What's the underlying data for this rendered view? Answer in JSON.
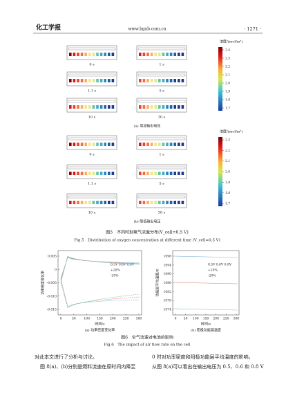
{
  "header": {
    "journal": "化工学报",
    "url": "www.hgxb.com.cn",
    "page": "· 1271 ·"
  },
  "figure5": {
    "panel_a": {
      "colorbar_title": "浓度/(mol/m³)",
      "colorbar_ticks": [
        "2.4",
        "2.3",
        "2.2",
        "2.1",
        "2.0",
        "1.9",
        "1.8",
        "1.7"
      ],
      "times": [
        "0 s",
        "1 s",
        "1.1 s",
        "5 s",
        "10 s",
        "30 s"
      ],
      "caption": "(a) 增加输出电压"
    },
    "panel_b": {
      "colorbar_title": "浓度/(mol/m³)",
      "colorbar_ticks": [
        "2.3",
        "2.2",
        "2.1",
        "2.0",
        "1.9",
        "1.8",
        "1.7"
      ],
      "times": [
        "0 s",
        "1 s",
        "1.1 s",
        "5 s",
        "10 s",
        "30 s"
      ],
      "caption": "(b) 降低输出电压"
    },
    "caption_cn": "图5　不同时刻氧气浓度分布(V_cell=0.5 V)",
    "caption_en": "Fig.5　Distribution of oxygen concentration at different time (V_cell=0.5 V)"
  },
  "figure6": {
    "panel_a": {
      "ylabel": "功率密度变化率",
      "yticks": [
        "0.005",
        "0",
        "-0.005",
        "-0.010",
        "-0.015"
      ],
      "xticks": [
        "0",
        "50",
        "100",
        "150",
        "200",
        "250",
        "300"
      ],
      "xlabel": "时间/s",
      "legend": [
        "0.5V 0.6V 0.8V",
        "+20%",
        "-20%"
      ],
      "caption": "(a) 功率密度变化率"
    },
    "panel_b": {
      "ylabel": "功能层平均温度/K",
      "yticks": [
        "1098",
        "1094",
        "1090",
        "1086",
        "1082",
        "1078",
        "1074"
      ],
      "xticks": [
        "0",
        "50",
        "100",
        "150",
        "200",
        "250",
        "300"
      ],
      "xlabel": "时间/s",
      "legend": [
        "0.5V 0.6V 0.8V",
        "+20%",
        "-20%"
      ],
      "caption": "(b) 阳极功能层温度"
    },
    "caption_cn": "图6　空气流速对电池的影响",
    "caption_en": "Fig.6　The impact of air flow rate on the cell"
  },
  "body": {
    "left": [
      "对此本文进行了分析与讨论。",
      "图 8(a)、(b)分别是燃料流速在原时间内降至"
    ],
    "right": [
      "0 时对功率密度和阳极功能层平均温度的影响。",
      "从图 8(a)可以看出在输出电压为 0.5、0.6 和 0.8 V"
    ]
  }
}
